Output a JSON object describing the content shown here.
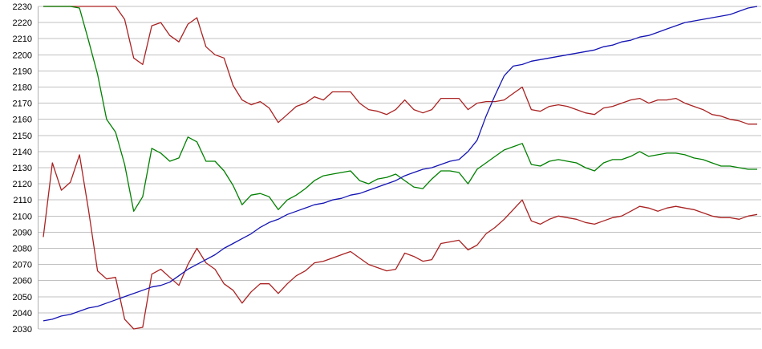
{
  "chart_data": {
    "type": "line",
    "title": "",
    "xlabel": "",
    "ylabel": "",
    "x_axis_labels_visible": false,
    "grid": true,
    "legend": "none",
    "background_color": "#ffffff",
    "gridline_color": "#c0c0c0",
    "axis_line_color": "#b0b0b0",
    "tick_label_color": "#000000",
    "ylim": [
      2030,
      2230
    ],
    "ytick_step": 10,
    "num_points": 80,
    "series": [
      {
        "name": "red-upper",
        "color": "#aa2222",
        "values": [
          2230,
          2230,
          2230,
          2230,
          2230,
          2230,
          2230,
          2230,
          2230,
          2222,
          2198,
          2194,
          2218,
          2220,
          2212,
          2208,
          2219,
          2223,
          2205,
          2200,
          2198,
          2181,
          2172,
          2169,
          2171,
          2167,
          2158,
          2163,
          2168,
          2170,
          2174,
          2172,
          2177,
          2177,
          2177,
          2170,
          2166,
          2165,
          2163,
          2166,
          2172,
          2166,
          2164,
          2166,
          2173,
          2173,
          2173,
          2166,
          2170,
          2171,
          2171,
          2172,
          2176,
          2180,
          2166,
          2165,
          2168,
          2169,
          2168,
          2166,
          2164,
          2163,
          2167,
          2168,
          2170,
          2172,
          2173,
          2170,
          2172,
          2172,
          2173,
          2170,
          2168,
          2166,
          2163,
          2162,
          2160,
          2159,
          2157,
          2157
        ]
      },
      {
        "name": "green",
        "color": "#008000",
        "values": [
          2230,
          2230,
          2230,
          2230,
          2229,
          2209,
          2188,
          2160,
          2152,
          2132,
          2103,
          2112,
          2142,
          2139,
          2134,
          2136,
          2149,
          2146,
          2134,
          2134,
          2128,
          2119,
          2107,
          2113,
          2114,
          2112,
          2104,
          2110,
          2113,
          2117,
          2122,
          2125,
          2126,
          2127,
          2128,
          2122,
          2120,
          2123,
          2124,
          2126,
          2122,
          2118,
          2117,
          2123,
          2128,
          2128,
          2127,
          2120,
          2129,
          2133,
          2137,
          2141,
          2143,
          2145,
          2132,
          2131,
          2134,
          2135,
          2134,
          2133,
          2130,
          2128,
          2133,
          2135,
          2135,
          2137,
          2140,
          2137,
          2138,
          2139,
          2139,
          2138,
          2136,
          2135,
          2133,
          2131,
          2131,
          2130,
          2129,
          2129
        ]
      },
      {
        "name": "red-lower",
        "color": "#aa2222",
        "values": [
          2087,
          2133,
          2116,
          2121,
          2138,
          2104,
          2066,
          2061,
          2062,
          2036,
          2030,
          2031,
          2064,
          2067,
          2062,
          2057,
          2070,
          2080,
          2071,
          2067,
          2058,
          2054,
          2046,
          2053,
          2058,
          2058,
          2052,
          2058,
          2063,
          2066,
          2071,
          2072,
          2074,
          2076,
          2078,
          2074,
          2070,
          2068,
          2066,
          2067,
          2077,
          2075,
          2072,
          2073,
          2083,
          2084,
          2085,
          2079,
          2082,
          2089,
          2093,
          2098,
          2104,
          2110,
          2097,
          2095,
          2098,
          2100,
          2099,
          2098,
          2096,
          2095,
          2097,
          2099,
          2100,
          2103,
          2106,
          2105,
          2103,
          2105,
          2106,
          2105,
          2104,
          2102,
          2100,
          2099,
          2099,
          2098,
          2100,
          2101
        ]
      },
      {
        "name": "blue",
        "color": "#1414b4",
        "values": [
          2035,
          2036,
          2038,
          2039,
          2041,
          2043,
          2044,
          2046,
          2048,
          2050,
          2052,
          2054,
          2056,
          2057,
          2059,
          2063,
          2067,
          2070,
          2073,
          2076,
          2080,
          2083,
          2086,
          2089,
          2093,
          2096,
          2098,
          2101,
          2103,
          2105,
          2107,
          2108,
          2110,
          2111,
          2113,
          2114,
          2116,
          2118,
          2120,
          2122,
          2125,
          2127,
          2129,
          2130,
          2132,
          2134,
          2135,
          2140,
          2147,
          2162,
          2175,
          2187,
          2193,
          2194,
          2196,
          2197,
          2198,
          2199,
          2200,
          2201,
          2202,
          2203,
          2205,
          2206,
          2208,
          2209,
          2211,
          2212,
          2214,
          2216,
          2218,
          2220,
          2221,
          2222,
          2223,
          2224,
          2225,
          2227,
          2229,
          2230
        ]
      }
    ]
  }
}
